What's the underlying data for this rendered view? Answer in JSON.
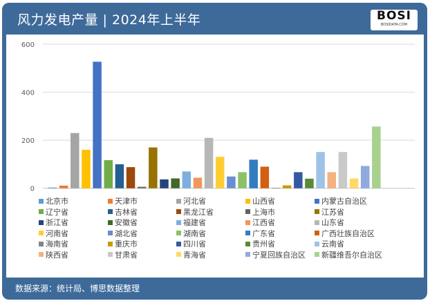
{
  "header": {
    "title": "风力发电产量 | 2024年上半年",
    "logo_text": "BOSI",
    "logo_sub": "BOSIDATA.COM"
  },
  "footer": {
    "source": "数据来源：统计局、博思数据整理"
  },
  "chart_data": {
    "type": "bar",
    "title": "",
    "xlabel": "",
    "ylabel": "",
    "ylim": [
      0,
      600
    ],
    "yticks": [
      0,
      200,
      400,
      600
    ],
    "grid": true,
    "legend_position": "bottom",
    "series": [
      {
        "name": "北京市",
        "value": 3,
        "color": "#5b9bd5"
      },
      {
        "name": "天津市",
        "value": 11,
        "color": "#ed7d31"
      },
      {
        "name": "河北省",
        "value": 230,
        "color": "#a5a5a5"
      },
      {
        "name": "山西省",
        "value": 160,
        "color": "#ffc000"
      },
      {
        "name": "内蒙古自治区",
        "value": 527,
        "color": "#4472c4"
      },
      {
        "name": "辽宁省",
        "value": 117,
        "color": "#70ad47"
      },
      {
        "name": "吉林省",
        "value": 100,
        "color": "#255e91"
      },
      {
        "name": "黑龙江省",
        "value": 88,
        "color": "#9e480e"
      },
      {
        "name": "上海市",
        "value": 6,
        "color": "#636363"
      },
      {
        "name": "江苏省",
        "value": 170,
        "color": "#997300"
      },
      {
        "name": "浙江省",
        "value": 37,
        "color": "#264478"
      },
      {
        "name": "安徽省",
        "value": 41,
        "color": "#43682b"
      },
      {
        "name": "福建省",
        "value": 70,
        "color": "#7cafdd"
      },
      {
        "name": "江西省",
        "value": 44,
        "color": "#f1975a"
      },
      {
        "name": "山东省",
        "value": 210,
        "color": "#b7b7b7"
      },
      {
        "name": "河南省",
        "value": 131,
        "color": "#ffcd33"
      },
      {
        "name": "湖北省",
        "value": 49,
        "color": "#698ed0"
      },
      {
        "name": "湖南省",
        "value": 67,
        "color": "#8cc168"
      },
      {
        "name": "广东省",
        "value": 119,
        "color": "#327dc2"
      },
      {
        "name": "广西壮族自治区",
        "value": 90,
        "color": "#d26012"
      },
      {
        "name": "海南省",
        "value": 2,
        "color": "#848484"
      },
      {
        "name": "重庆市",
        "value": 12,
        "color": "#cc9a00"
      },
      {
        "name": "四川省",
        "value": 67,
        "color": "#335aa1"
      },
      {
        "name": "贵州省",
        "value": 40,
        "color": "#5a8a39"
      },
      {
        "name": "云南省",
        "value": 151,
        "color": "#9dc3e6"
      },
      {
        "name": "陕西省",
        "value": 67,
        "color": "#f4b183"
      },
      {
        "name": "甘肃省",
        "value": 151,
        "color": "#c9c9c9"
      },
      {
        "name": "青海省",
        "value": 41,
        "color": "#ffd966"
      },
      {
        "name": "宁夏回族自治区",
        "value": 93,
        "color": "#8faadc"
      },
      {
        "name": "新疆维吾尔自治区",
        "value": 257,
        "color": "#a9d18e"
      }
    ]
  }
}
